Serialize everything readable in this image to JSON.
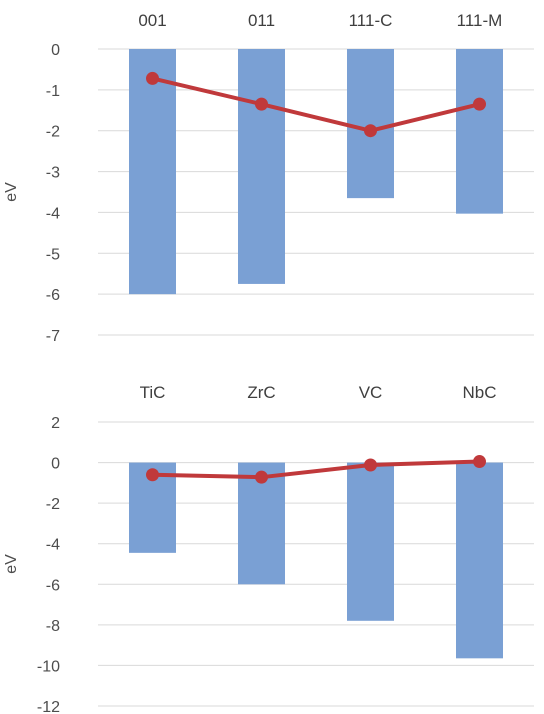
{
  "chart_data": [
    {
      "type": "bar",
      "categories": [
        "001",
        "011",
        "111-C",
        "111-M"
      ],
      "series": [
        {
          "kind": "bar",
          "values": [
            -6.0,
            -5.75,
            -3.65,
            -4.03
          ]
        },
        {
          "kind": "line",
          "values": [
            -0.72,
            -1.35,
            -2.0,
            -1.35
          ]
        }
      ],
      "ylabel": "eV",
      "ylim": [
        -7,
        0
      ],
      "yticks": [
        0,
        -1,
        -2,
        -3,
        -4,
        -5,
        -6,
        -7
      ],
      "grid": true,
      "legend": "none"
    },
    {
      "type": "bar",
      "categories": [
        "TiC",
        "ZrC",
        "VC",
        "NbC"
      ],
      "series": [
        {
          "kind": "bar",
          "values": [
            -4.45,
            -6.0,
            -7.8,
            -9.65
          ]
        },
        {
          "kind": "line",
          "values": [
            -0.6,
            -0.72,
            -0.12,
            0.05
          ]
        }
      ],
      "ylabel": "eV",
      "ylim": [
        -12,
        2
      ],
      "yticks": [
        2,
        0,
        -2,
        -4,
        -6,
        -8,
        -10,
        -12
      ],
      "grid": true,
      "legend": "none"
    }
  ],
  "colors": {
    "bar": "#7aa0d4",
    "line": "#c0393b",
    "grid": "#d9d9d9"
  }
}
